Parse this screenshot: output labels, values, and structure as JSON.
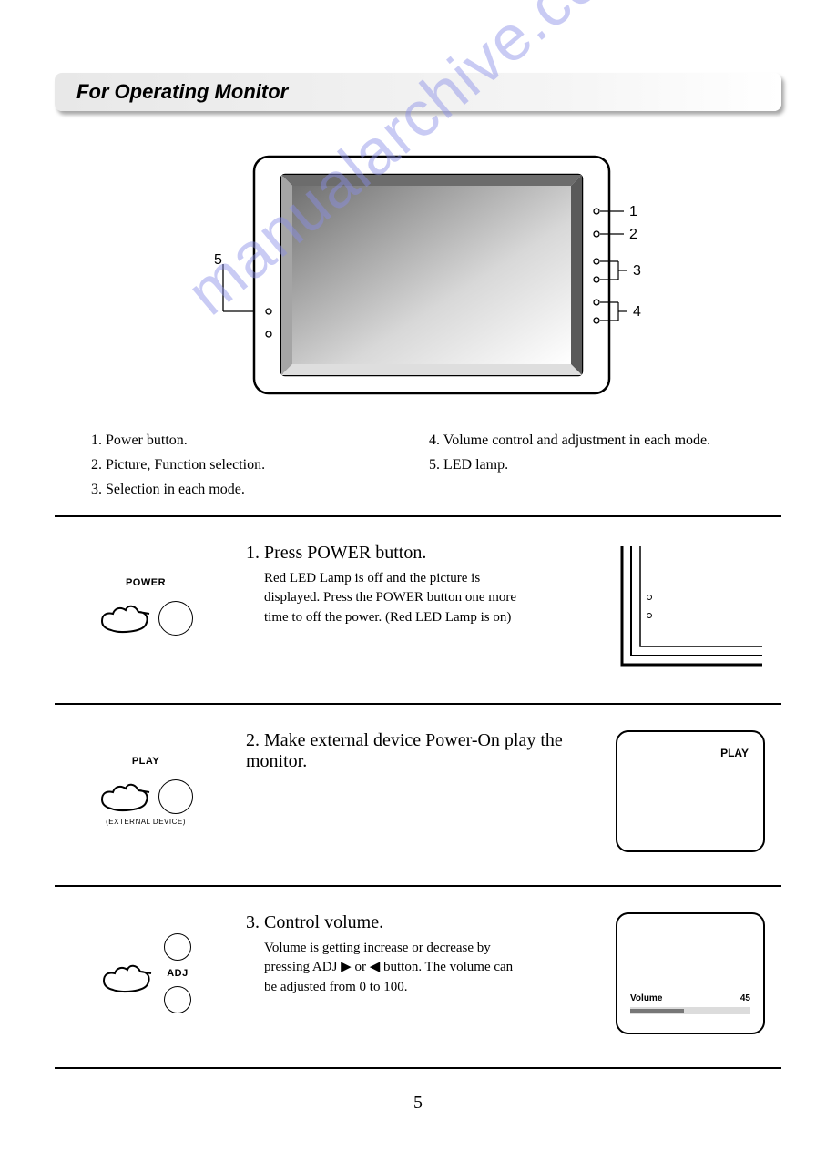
{
  "title": "For Operating Monitor",
  "watermark": "manualarchive.com",
  "monitor": {
    "callouts": {
      "c1": "1",
      "c2": "2",
      "c3": "3",
      "c4": "4",
      "c5": "5"
    }
  },
  "labels": {
    "l1": "1. Power button.",
    "l2": "2. Picture, Function selection.",
    "l3": "3. Selection in each mode.",
    "l4": "4. Volume control and adjustment in each mode.",
    "l5": "5. LED lamp."
  },
  "step1": {
    "button_label": "POWER",
    "heading": "1. Press POWER button.",
    "body": "Red LED Lamp is off and the picture is displayed. Press the POWER button one more time to off the power. (Red LED Lamp is on)"
  },
  "step2": {
    "button_label": "PLAY",
    "sub_label": "(EXTERNAL DEVICE)",
    "heading": "2. Make external device Power-On play the monitor.",
    "right_label": "PLAY"
  },
  "step3": {
    "button_label": "ADJ",
    "heading": "3. Control volume.",
    "body": "Volume is getting increase or decrease by pressing ADJ ▶ or ◀ button. The volume can be adjusted from 0 to 100.",
    "vol_label": "Volume",
    "vol_value": "45",
    "vol_percent": 45
  },
  "page_number": "5",
  "colors": {
    "watermark": "#8a8ee8",
    "text": "#000000",
    "bg": "#ffffff",
    "shade_dark": "#6c6c6c",
    "shade_light": "#cfcfcf"
  }
}
